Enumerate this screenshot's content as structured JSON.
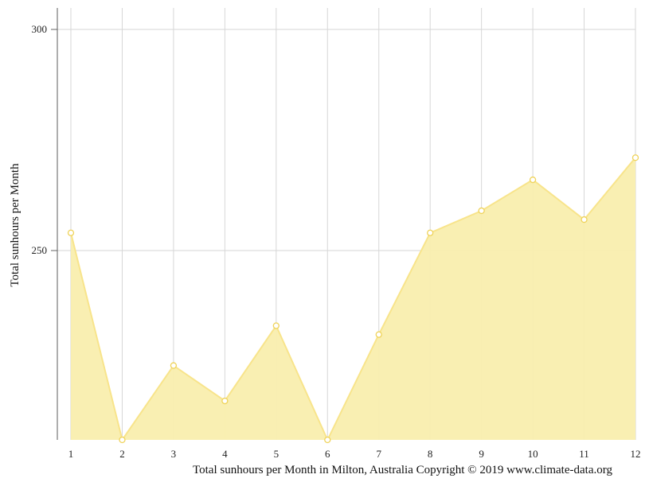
{
  "chart_data": {
    "type": "area",
    "x": [
      1,
      2,
      3,
      4,
      5,
      6,
      7,
      8,
      9,
      10,
      11,
      12
    ],
    "values": [
      254,
      207,
      224,
      216,
      233,
      207,
      231,
      254,
      259,
      266,
      257,
      271
    ],
    "ylabel": "Total sunhours per Month",
    "yticks": [
      250,
      300
    ],
    "ylim": [
      207,
      303
    ],
    "grid": true,
    "colors": {
      "fill": "#f9eeae",
      "line": "#f8e48b",
      "marker_stroke": "#efd35a",
      "grid": "#d6d6d6"
    }
  },
  "caption": "Total sunhours per Month in Milton, Australia Copyright © 2019 www.climate-data.org"
}
